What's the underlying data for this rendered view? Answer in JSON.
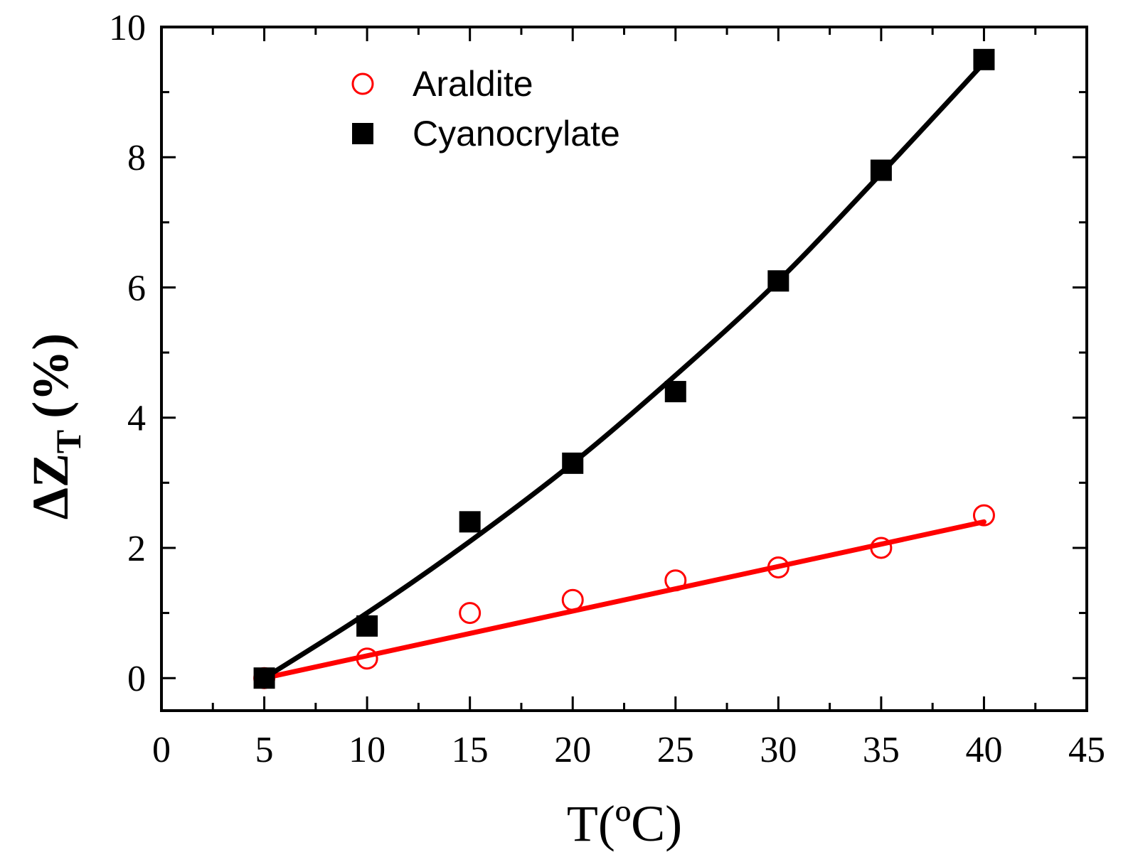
{
  "chart_data": {
    "type": "scatter",
    "title": "",
    "xlabel": "T(ºC)",
    "ylabel": "ΔZ",
    "ylabel_subscript": "T",
    "ylabel_suffix": "(%)",
    "xlim": [
      0,
      45
    ],
    "ylim": [
      -0.5,
      10
    ],
    "xticks": [
      0,
      5,
      10,
      15,
      20,
      25,
      30,
      35,
      40,
      45
    ],
    "yticks": [
      0,
      2,
      4,
      6,
      8,
      10
    ],
    "grid": false,
    "legend_position": "top-center",
    "series": [
      {
        "name": "Araldite",
        "marker": "open-circle",
        "color": "#ff0000",
        "x": [
          5,
          10,
          15,
          20,
          25,
          30,
          35,
          40
        ],
        "y": [
          0,
          0.3,
          1.0,
          1.2,
          1.5,
          1.7,
          2.0,
          2.5
        ],
        "fit": {
          "kind": "linear",
          "x": [
            5,
            40
          ],
          "y": [
            0,
            2.4
          ]
        }
      },
      {
        "name": "Cyanocrylate",
        "marker": "filled-square",
        "color": "#000000",
        "x": [
          5,
          10,
          15,
          20,
          25,
          30,
          35,
          40
        ],
        "y": [
          0,
          0.8,
          2.4,
          3.3,
          4.4,
          6.1,
          7.8,
          9.5
        ],
        "fit": {
          "kind": "quadratic",
          "x": [
            5,
            10,
            15,
            20,
            25,
            30,
            35,
            40
          ],
          "y": [
            0,
            1.0,
            2.1,
            3.3,
            4.65,
            6.1,
            7.75,
            9.45
          ]
        }
      }
    ]
  }
}
